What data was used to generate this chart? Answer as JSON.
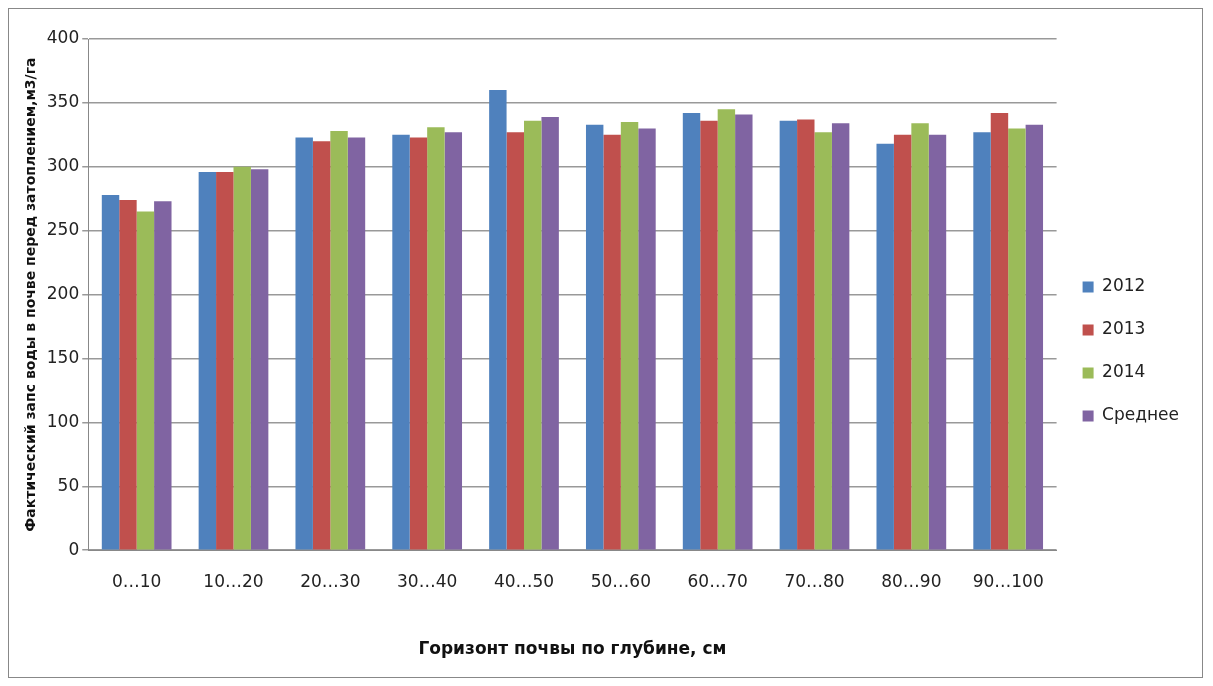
{
  "chart_data": {
    "type": "bar",
    "xlabel": "Горизонт почвы по глубине, см",
    "ylabel": "Фактический запс воды в почве перед затоплением,м3/га",
    "categories": [
      "0…10",
      "10…20",
      "20…30",
      "30…40",
      "40…50",
      "50…60",
      "60…70",
      "70…80",
      "80…90",
      "90…100"
    ],
    "series": [
      {
        "name": "2012",
        "color": "#4f81bd",
        "values": [
          278,
          296,
          323,
          325,
          360,
          333,
          342,
          336,
          318,
          327
        ]
      },
      {
        "name": "2013",
        "color": "#c0504d",
        "values": [
          274,
          296,
          320,
          323,
          327,
          325,
          336,
          337,
          325,
          342
        ]
      },
      {
        "name": "2014",
        "color": "#9bbb59",
        "values": [
          265,
          300,
          328,
          331,
          336,
          335,
          345,
          327,
          334,
          330
        ]
      },
      {
        "name": "Среднее",
        "color": "#8064a2",
        "values": [
          273,
          298,
          323,
          327,
          339,
          330,
          341,
          334,
          325,
          333
        ]
      }
    ],
    "ylim": [
      0,
      400
    ],
    "yticks": [
      0,
      50,
      100,
      150,
      200,
      250,
      300,
      350,
      400
    ],
    "grid": "y",
    "legend": "right"
  }
}
